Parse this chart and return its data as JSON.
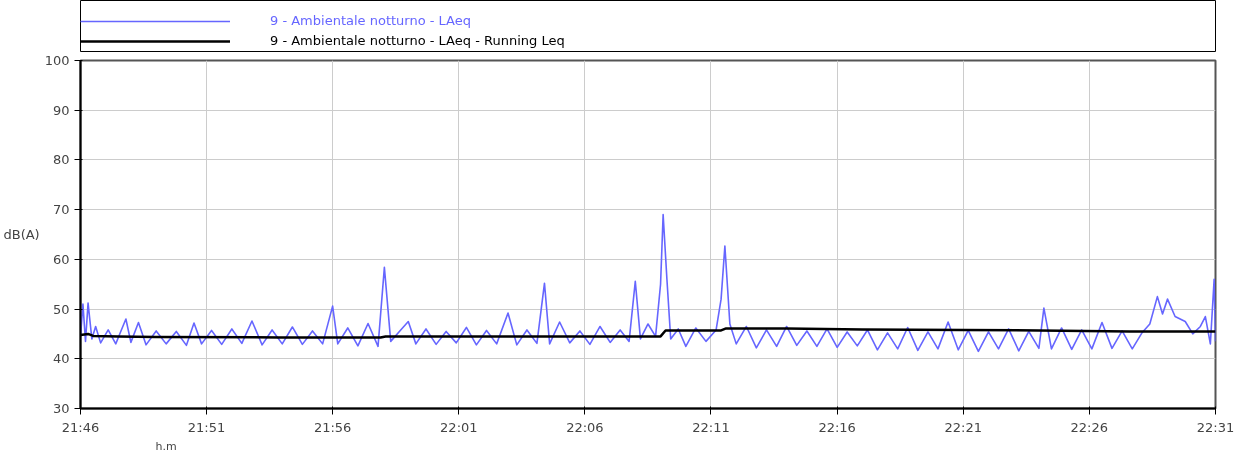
{
  "chart_data": {
    "type": "line",
    "xlabel": "h.m",
    "ylabel": "dB(A)",
    "xlim": [
      21.7667,
      22.5167
    ],
    "ylim": [
      30,
      100
    ],
    "xticks": [
      {
        "value": 21.7667,
        "label": "21:46"
      },
      {
        "value": 21.85,
        "label": "21:51"
      },
      {
        "value": 21.9333,
        "label": "21:56"
      },
      {
        "value": 22.0167,
        "label": "22:01"
      },
      {
        "value": 22.1,
        "label": "22:06"
      },
      {
        "value": 22.1833,
        "label": "22:11"
      },
      {
        "value": 22.2667,
        "label": "22:16"
      },
      {
        "value": 22.35,
        "label": "22:21"
      },
      {
        "value": 22.4333,
        "label": "22:26"
      },
      {
        "value": 22.5167,
        "label": "22:31"
      }
    ],
    "yticks": [
      30,
      40,
      50,
      60,
      70,
      80,
      90,
      100
    ],
    "grid": true,
    "legend": "top",
    "line_style": "solid",
    "marker": "none",
    "series": [
      {
        "name": "9 - Ambientale notturno - LAeq",
        "color": "#6666ff",
        "x": [
          21.7667,
          21.7683,
          21.77,
          21.7717,
          21.7742,
          21.7767,
          21.78,
          21.785,
          21.79,
          21.7933,
          21.7967,
          21.8,
          21.805,
          21.81,
          21.8167,
          21.8233,
          21.83,
          21.8367,
          21.8417,
          21.8467,
          21.8533,
          21.86,
          21.8667,
          21.8733,
          21.88,
          21.8867,
          21.8933,
          21.9,
          21.9067,
          21.9133,
          21.92,
          21.9267,
          21.9333,
          21.9367,
          21.9433,
          21.95,
          21.9567,
          21.9633,
          21.9675,
          21.9717,
          21.9783,
          21.9833,
          21.9883,
          21.995,
          22.0017,
          22.0083,
          22.015,
          22.0217,
          22.0283,
          22.035,
          22.0417,
          22.0492,
          22.055,
          22.0617,
          22.0683,
          22.0733,
          22.0767,
          22.0833,
          22.09,
          22.0967,
          22.1033,
          22.11,
          22.1167,
          22.1233,
          22.1292,
          22.1333,
          22.1367,
          22.1417,
          22.1467,
          22.15,
          22.1517,
          22.1542,
          22.1567,
          22.1617,
          22.1667,
          22.1733,
          22.18,
          22.1867,
          22.19,
          22.1925,
          22.1958,
          22.2,
          22.2067,
          22.2133,
          22.22,
          22.2267,
          22.2333,
          22.24,
          22.2467,
          22.2533,
          22.26,
          22.2667,
          22.2733,
          22.28,
          22.2867,
          22.2933,
          22.3,
          22.3067,
          22.3133,
          22.32,
          22.3267,
          22.3333,
          22.34,
          22.3467,
          22.3533,
          22.36,
          22.3667,
          22.3733,
          22.38,
          22.3867,
          22.3933,
          22.4,
          22.4033,
          22.4083,
          22.415,
          22.4217,
          22.4283,
          22.435,
          22.4417,
          22.4483,
          22.455,
          22.4617,
          22.4683,
          22.4733,
          22.4783,
          22.4817,
          22.485,
          22.49,
          22.4967,
          22.5017,
          22.5067,
          22.51,
          22.5133,
          22.5158,
          22.5167
        ],
        "values": [
          44.5,
          51.0,
          43.5,
          51.2,
          44.0,
          46.5,
          43.2,
          45.8,
          43.0,
          45.5,
          48.0,
          43.3,
          47.3,
          42.8,
          45.6,
          43.0,
          45.5,
          42.7,
          47.2,
          43.0,
          45.7,
          42.9,
          46.0,
          43.1,
          47.6,
          42.8,
          45.8,
          43.0,
          46.4,
          42.9,
          45.6,
          43.0,
          50.6,
          43.0,
          46.2,
          42.6,
          47.1,
          42.5,
          58.4,
          43.5,
          45.8,
          47.5,
          43.0,
          46.0,
          42.9,
          45.5,
          43.2,
          46.3,
          42.8,
          45.7,
          43.0,
          49.2,
          42.8,
          45.8,
          43.1,
          55.2,
          43.0,
          47.4,
          43.2,
          45.6,
          42.9,
          46.5,
          43.3,
          45.8,
          43.5,
          55.6,
          44.0,
          47.0,
          44.5,
          55.0,
          69.0,
          56.0,
          44.0,
          46.0,
          42.5,
          46.2,
          43.5,
          45.8,
          52.0,
          62.7,
          47.0,
          43.0,
          46.5,
          42.2,
          45.8,
          42.5,
          46.5,
          42.7,
          45.6,
          42.5,
          46.0,
          42.3,
          45.4,
          42.6,
          45.8,
          41.8,
          45.2,
          42.0,
          46.3,
          41.7,
          45.4,
          42.0,
          47.4,
          41.8,
          45.7,
          41.5,
          45.4,
          42.0,
          46.0,
          41.6,
          45.5,
          42.1,
          50.2,
          42.0,
          46.2,
          41.9,
          45.8,
          42.0,
          47.3,
          42.1,
          45.6,
          42.0,
          45.3,
          47.0,
          52.5,
          49.0,
          52.0,
          48.5,
          47.5,
          45.0,
          46.5,
          48.5,
          43.0,
          56.0,
          43.5
        ]
      },
      {
        "name": "9 - Ambientale notturno - LAeq - Running Leq",
        "color": "#000000",
        "x": [
          21.7667,
          21.7717,
          21.775,
          21.7917,
          21.8167,
          21.8983,
          21.965,
          21.9683,
          22.15,
          22.1533,
          22.19,
          22.1933,
          22.2333,
          22.2833,
          22.35,
          22.4,
          22.46,
          22.5167
        ],
        "values": [
          44.8,
          45.0,
          44.6,
          44.5,
          44.4,
          44.3,
          44.3,
          44.5,
          44.5,
          45.7,
          45.7,
          46.1,
          46.1,
          45.9,
          45.8,
          45.7,
          45.5,
          45.5
        ]
      }
    ]
  }
}
